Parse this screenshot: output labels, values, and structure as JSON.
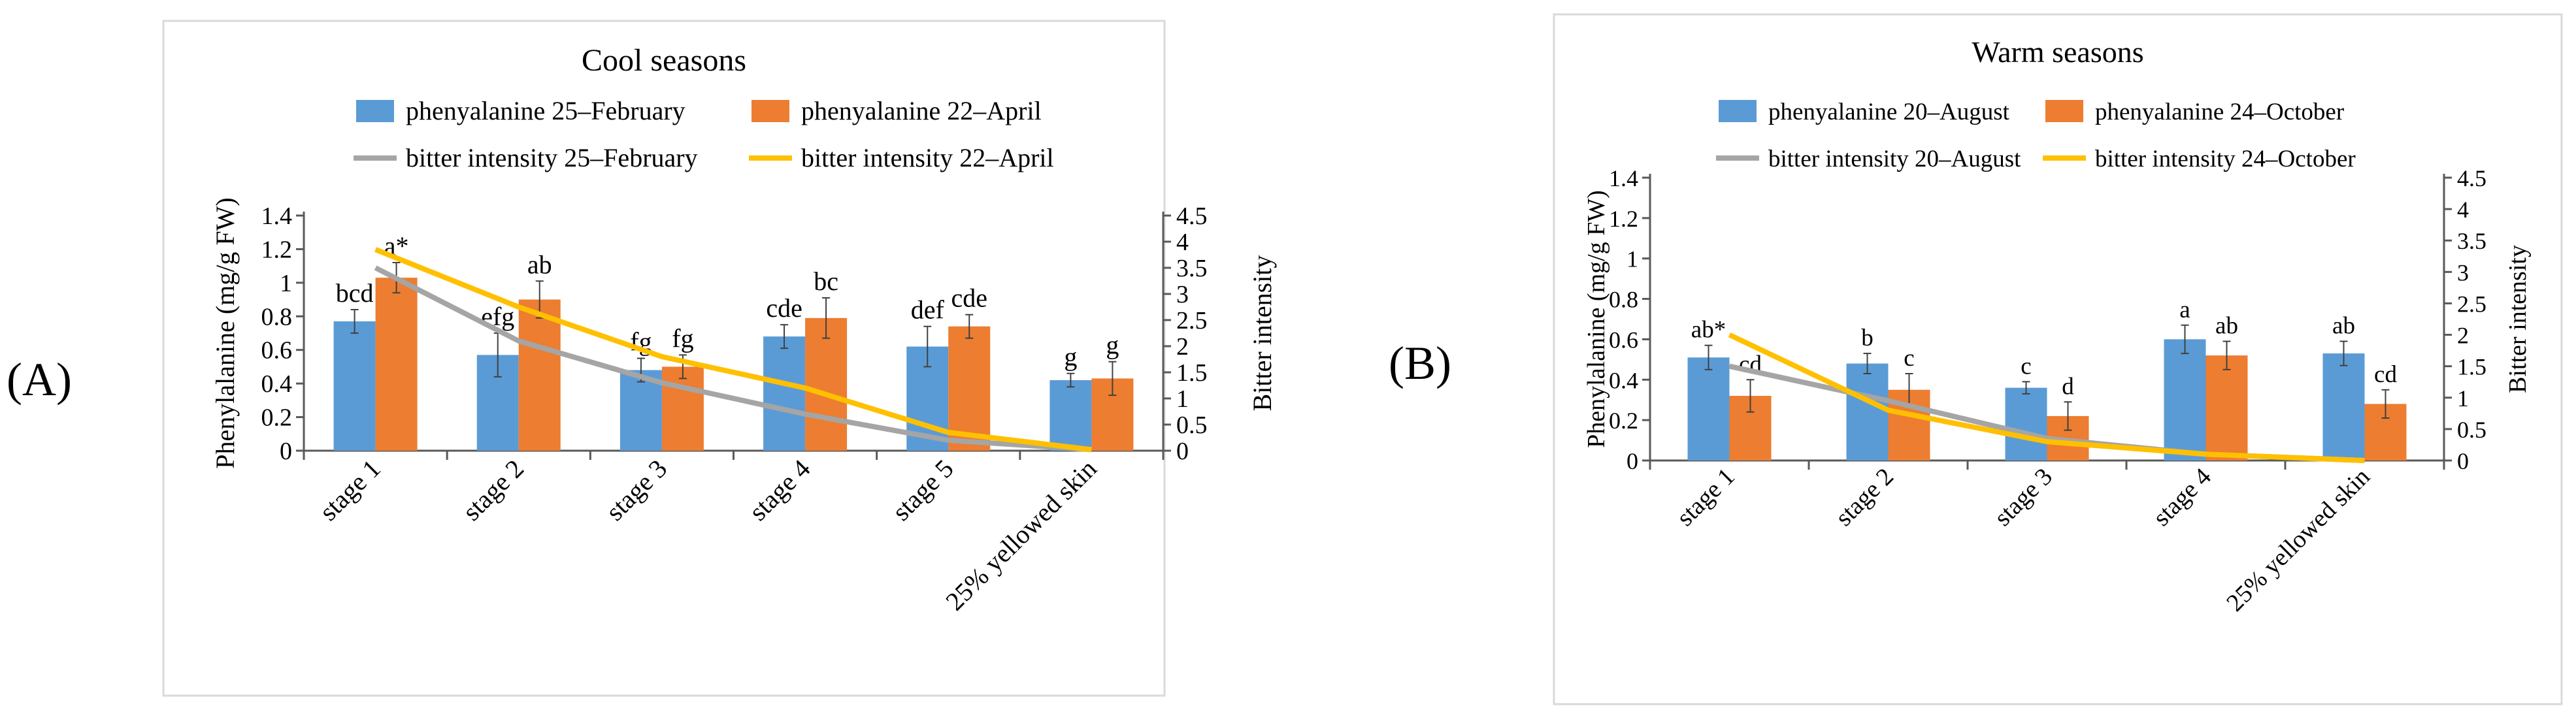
{
  "panels": {
    "a": "(A)",
    "b": "(B)"
  },
  "colors": {
    "bar1": "#5b9bd5",
    "bar2": "#ed7d31",
    "line1": "#a5a5a5",
    "line2": "#ffc000",
    "frame": "#d9d9d9",
    "axis": "#595959"
  },
  "chart_data": [
    {
      "type": "bar",
      "title": "Cool seasons",
      "categories": [
        "stage 1",
        "stage 2",
        "stage 3",
        "stage 4",
        "stage 5",
        "25% yellowed skin"
      ],
      "ylabel": "Phenylalanine (mg/g FW)",
      "y2label": "Bitter intensity",
      "ylim": [
        0,
        1.4
      ],
      "yticks": [
        "0",
        "0.2",
        "0.4",
        "0.6",
        "0.8",
        "1",
        "1.2",
        "1.4"
      ],
      "y2lim": [
        0,
        4.5
      ],
      "y2ticks": [
        "0",
        "0.5",
        "1",
        "1.5",
        "2",
        "2.5",
        "3",
        "3.5",
        "4",
        "4.5"
      ],
      "bar_series": [
        {
          "name": "phenyalanine 25–February",
          "values": [
            0.77,
            0.57,
            0.48,
            0.68,
            0.62,
            0.42
          ],
          "errors": [
            0.07,
            0.13,
            0.07,
            0.07,
            0.12,
            0.04
          ],
          "labels": [
            "bcd",
            "efg",
            "fg",
            "cde",
            "def",
            "g"
          ]
        },
        {
          "name": "phenyalanine 22–April",
          "values": [
            1.03,
            0.9,
            0.5,
            0.79,
            0.74,
            0.43
          ],
          "errors": [
            0.09,
            0.11,
            0.07,
            0.12,
            0.07,
            0.1
          ],
          "labels": [
            "a*",
            "ab",
            "fg",
            "bc",
            "cde",
            "g"
          ]
        }
      ],
      "line_series": [
        {
          "name": "bitter intensity 25–February",
          "values": [
            3.5,
            2.1,
            1.3,
            0.7,
            0.2,
            0.02
          ]
        },
        {
          "name": "bitter intensity 22–April",
          "values": [
            3.85,
            2.75,
            1.8,
            1.2,
            0.35,
            0.02
          ]
        }
      ]
    },
    {
      "type": "bar",
      "title": "Warm seasons",
      "categories": [
        "stage 1",
        "stage 2",
        "stage 3",
        "stage 4",
        "25% yellowed skin"
      ],
      "ylabel": "Phenylalanine (mg/g FW)",
      "y2label": "Bitter intensity",
      "ylim": [
        0,
        1.4
      ],
      "yticks": [
        "0",
        "0.2",
        "0.4",
        "0.6",
        "0.8",
        "1",
        "1.2",
        "1.4"
      ],
      "y2lim": [
        0,
        4.5
      ],
      "y2ticks": [
        "0",
        "0.5",
        "1",
        "1.5",
        "2",
        "2.5",
        "3",
        "3.5",
        "4",
        "4.5"
      ],
      "bar_series": [
        {
          "name": "phenyalanine 20–August",
          "values": [
            0.51,
            0.48,
            0.36,
            0.6,
            0.53
          ],
          "errors": [
            0.06,
            0.05,
            0.03,
            0.07,
            0.06
          ],
          "labels": [
            "ab*",
            "b",
            "c",
            "a",
            "ab"
          ]
        },
        {
          "name": "phenyalanine 24–October",
          "values": [
            0.32,
            0.35,
            0.22,
            0.52,
            0.28
          ],
          "errors": [
            0.08,
            0.08,
            0.07,
            0.07,
            0.07
          ],
          "labels": [
            "cd",
            "c",
            "d",
            "ab",
            "cd"
          ]
        }
      ],
      "line_series": [
        {
          "name": "bitter intensity 20–August",
          "values": [
            1.5,
            0.95,
            0.35,
            0.1,
            0.0
          ]
        },
        {
          "name": "bitter intensity 24–October",
          "values": [
            2.0,
            0.8,
            0.3,
            0.1,
            0.0
          ]
        }
      ]
    }
  ]
}
